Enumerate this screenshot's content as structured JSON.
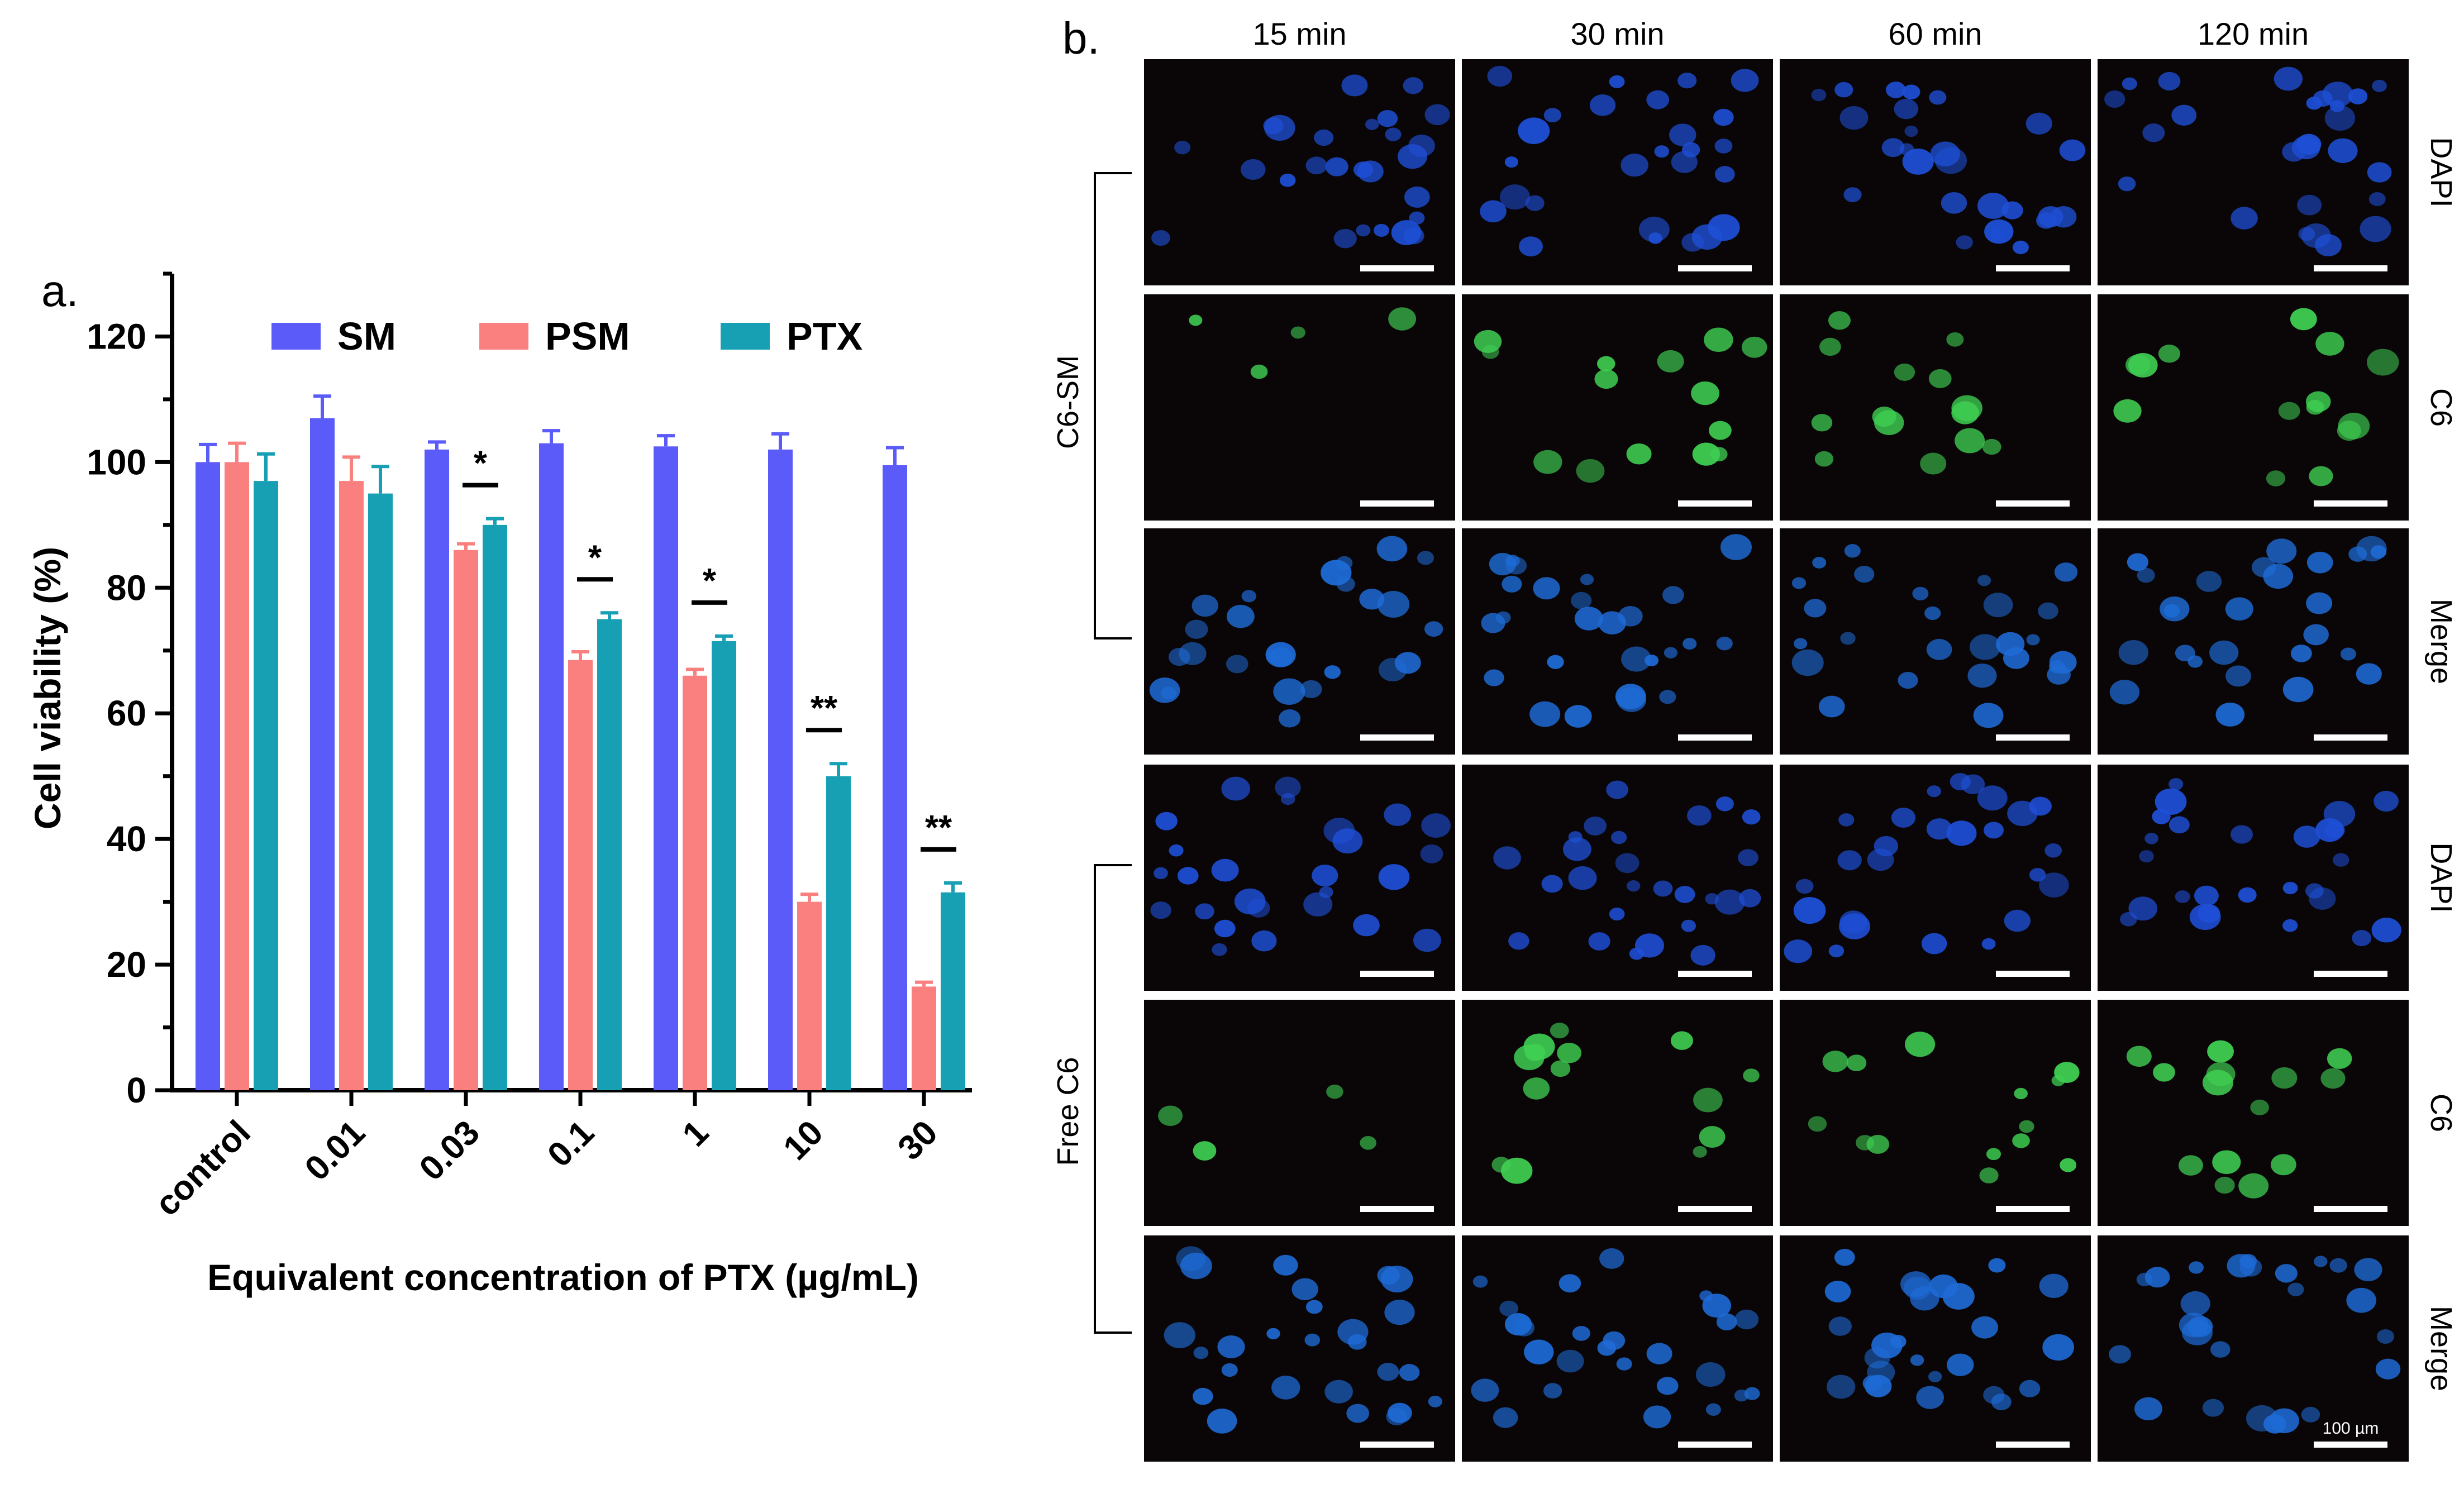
{
  "panel_a": {
    "label": "a.",
    "chart_data": {
      "type": "bar",
      "title": "",
      "xlabel": "Equivalent concentration of PTX (µg/mL)",
      "ylabel": "Cell viability (%)",
      "ylim": [
        0,
        130
      ],
      "yticks": [
        0,
        20,
        40,
        60,
        80,
        100,
        120
      ],
      "grid": false,
      "legend_position": "top",
      "categories": [
        "control",
        "0.01",
        "0.03",
        "0.1",
        "1",
        "10",
        "30"
      ],
      "series": [
        {
          "name": "SM",
          "color": "#5b5bfa",
          "values": [
            100,
            107,
            102,
            103,
            102.5,
            102,
            99.5
          ],
          "errors": [
            2.8,
            3.5,
            1.2,
            2.0,
            1.7,
            2.5,
            2.8
          ]
        },
        {
          "name": "PSM",
          "color": "#fa8080",
          "values": [
            100,
            97,
            86,
            68.5,
            66,
            30,
            16.5
          ],
          "errors": [
            3.0,
            3.8,
            1.0,
            1.3,
            1.0,
            1.2,
            0.7
          ]
        },
        {
          "name": "PTX",
          "color": "#17a0b4",
          "values": [
            97,
            95,
            90,
            75,
            71.5,
            50,
            31.5
          ],
          "errors": [
            4.3,
            4.3,
            1.0,
            1.0,
            0.8,
            2.0,
            1.5
          ]
        }
      ],
      "significance": [
        {
          "category": "0.03",
          "mark": "*"
        },
        {
          "category": "0.1",
          "mark": "*"
        },
        {
          "category": "1",
          "mark": "*"
        },
        {
          "category": "10",
          "mark": "**"
        },
        {
          "category": "30",
          "mark": "**"
        }
      ]
    }
  },
  "panel_b": {
    "label": "b.",
    "columns": [
      "15 min",
      "30 min",
      "60 min",
      "120 min"
    ],
    "rows": [
      "DAPI",
      "C6",
      "Merge",
      "DAPI",
      "C6",
      "Merge"
    ],
    "groups": [
      {
        "label": "C6-SM",
        "rows": [
          0,
          1,
          2
        ]
      },
      {
        "label": "Free C6",
        "rows": [
          3,
          4,
          5
        ]
      }
    ],
    "channel_colors": {
      "DAPI": "#1e4fd6",
      "C6": "#3fcf52",
      "Merge": "#1e6bd6"
    },
    "scale_bar_label": "100 µm"
  }
}
